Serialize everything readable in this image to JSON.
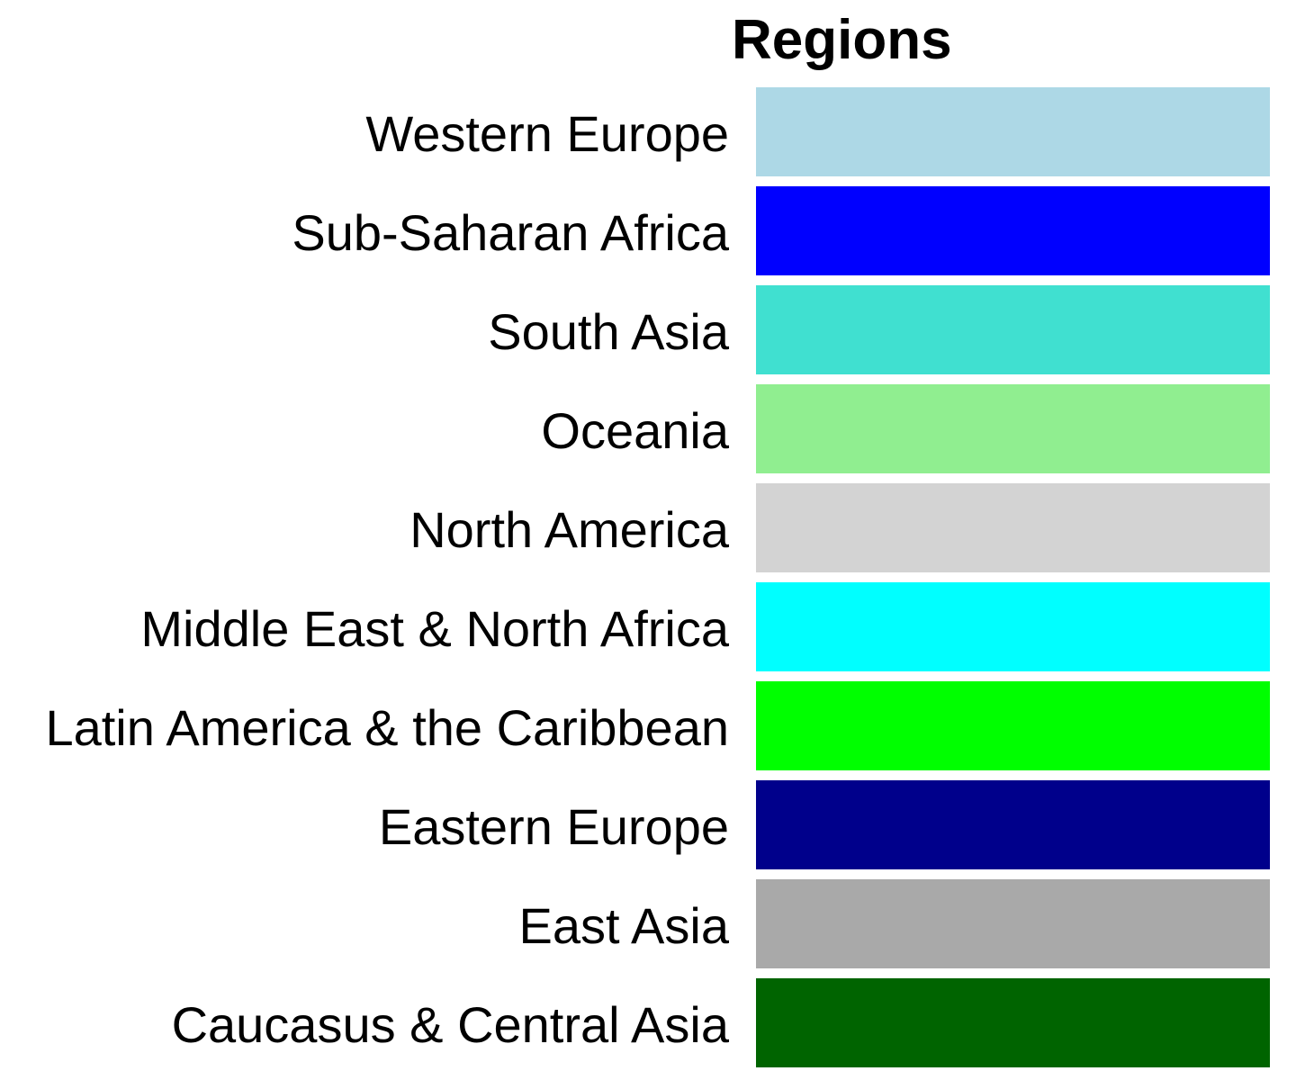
{
  "chart_data": {
    "type": "legend",
    "title": "Regions",
    "entries": [
      {
        "label": "Western Europe",
        "color": "#ADD8E6"
      },
      {
        "label": "Sub-Saharan Africa",
        "color": "#0000FF"
      },
      {
        "label": "South Asia",
        "color": "#40E0D0"
      },
      {
        "label": "Oceania",
        "color": "#90EE90"
      },
      {
        "label": "North America",
        "color": "#D3D3D3"
      },
      {
        "label": "Middle East & North Africa",
        "color": "#00FFFF"
      },
      {
        "label": "Latin America & the Caribbean",
        "color": "#00FF00"
      },
      {
        "label": "Eastern Europe",
        "color": "#00008B"
      },
      {
        "label": "East Asia",
        "color": "#A9A9A9"
      },
      {
        "label": "Caucasus & Central Asia",
        "color": "#006400"
      }
    ]
  }
}
